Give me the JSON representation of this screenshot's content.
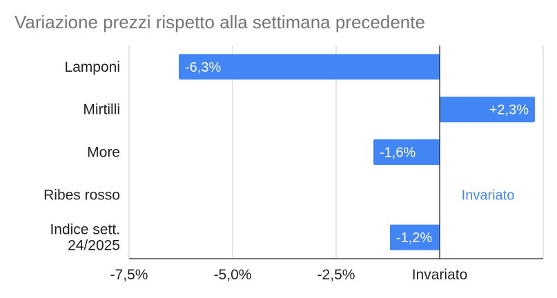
{
  "chart_data": {
    "type": "bar",
    "orientation": "horizontal",
    "title": "Variazione prezzi rispetto alla settimana precedente",
    "categories": [
      "Lamponi",
      "Mirtilli",
      "More",
      "Ribes rosso",
      "Indice sett.\n24/2025"
    ],
    "values": [
      -6.3,
      2.3,
      -1.6,
      0,
      -1.2
    ],
    "data_labels": [
      "-6,3%",
      "+2,3%",
      "-1,6%",
      "Invariato",
      "-1,2%"
    ],
    "x_ticks": [
      -7.5,
      -5.0,
      -2.5,
      0
    ],
    "x_tick_labels": [
      "-7,5%",
      "-5,0%",
      "-2,5%",
      "Invariato"
    ],
    "xlim": [
      -7.5,
      2.5
    ],
    "xlabel": "",
    "ylabel": "",
    "grid": true,
    "legend": "none",
    "bar_color": "#4285f4"
  }
}
